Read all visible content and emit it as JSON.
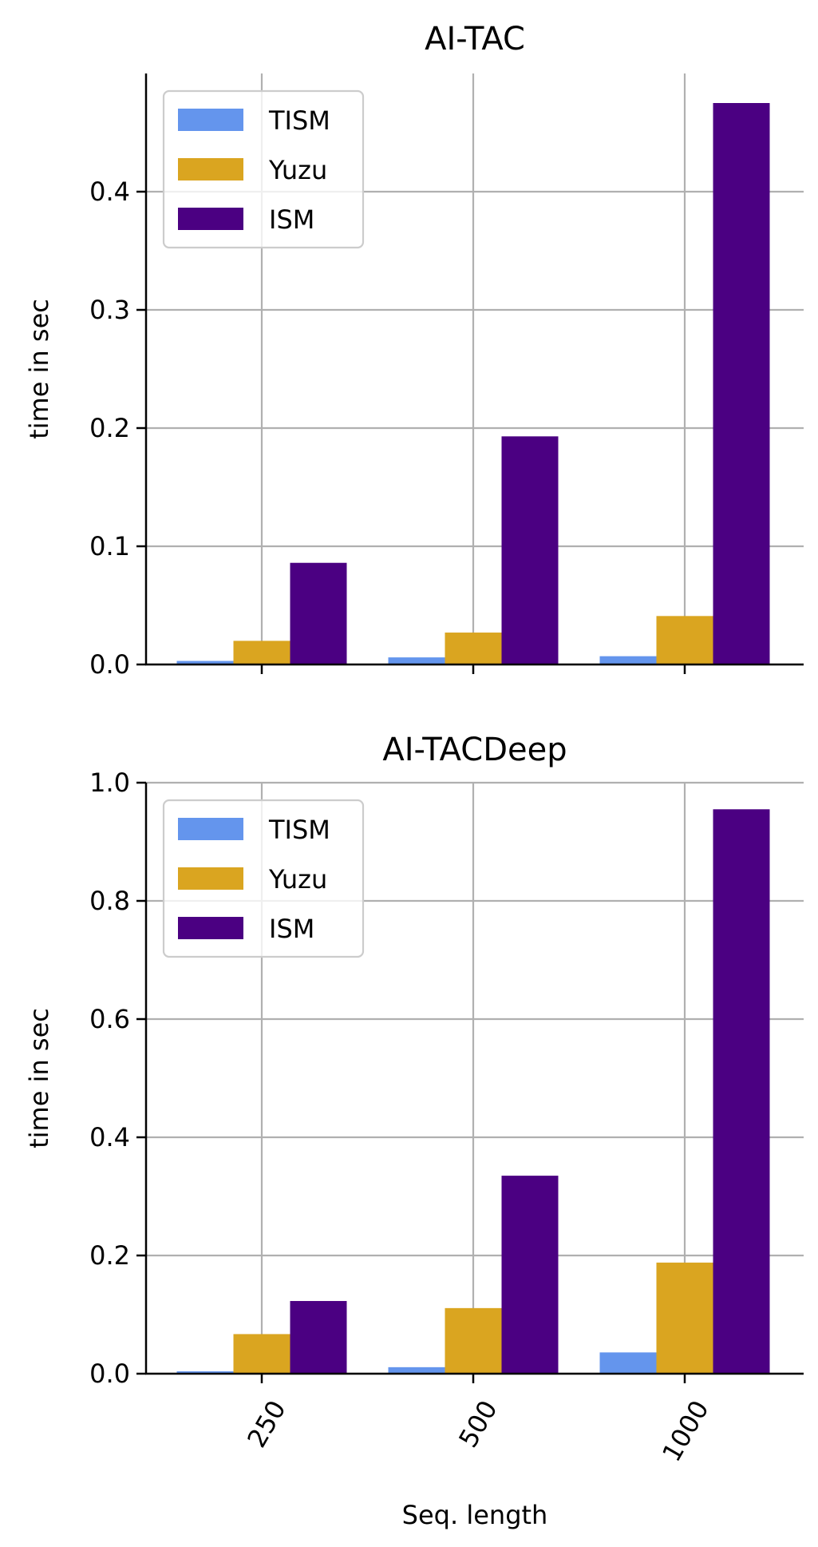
{
  "chart_data": [
    {
      "type": "bar",
      "title": "AI-TAC",
      "xlabel": "",
      "ylabel": "time in sec",
      "categories": [
        "250",
        "500",
        "1000"
      ],
      "ylim": [
        0,
        0.5
      ],
      "yticks": [
        "0.0",
        "0.1",
        "0.2",
        "0.3",
        "0.4"
      ],
      "grid": true,
      "legend_position": "top-left",
      "series": [
        {
          "name": "TISM",
          "color": "#6495ED",
          "values": [
            0.003,
            0.006,
            0.007
          ]
        },
        {
          "name": "Yuzu",
          "color": "#DAA520",
          "values": [
            0.02,
            0.027,
            0.041
          ]
        },
        {
          "name": "ISM",
          "color": "#4B0082",
          "values": [
            0.086,
            0.193,
            0.475
          ]
        }
      ]
    },
    {
      "type": "bar",
      "title": "AI-TACDeep",
      "xlabel": "Seq. length",
      "ylabel": "time in sec",
      "categories": [
        "250",
        "500",
        "1000"
      ],
      "ylim": [
        0,
        1.0
      ],
      "yticks": [
        "0.0",
        "0.2",
        "0.4",
        "0.6",
        "0.8",
        "1.0"
      ],
      "grid": true,
      "legend_position": "top-left",
      "series": [
        {
          "name": "TISM",
          "color": "#6495ED",
          "values": [
            0.004,
            0.011,
            0.036
          ]
        },
        {
          "name": "Yuzu",
          "color": "#DAA520",
          "values": [
            0.067,
            0.111,
            0.188
          ]
        },
        {
          "name": "ISM",
          "color": "#4B0082",
          "values": [
            0.123,
            0.335,
            0.955
          ]
        }
      ]
    }
  ]
}
